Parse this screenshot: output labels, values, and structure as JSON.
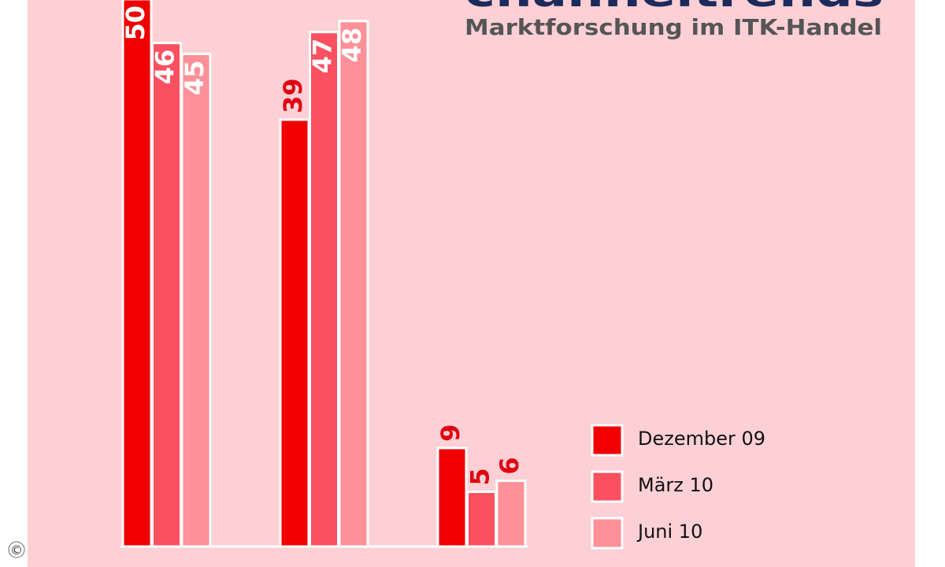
{
  "brand": "channeltrends",
  "tagline": "Marktforschung im ITK-Handel",
  "copyright": "©",
  "chart_data": {
    "type": "bar",
    "categories": [
      null,
      null,
      null
    ],
    "series": [
      {
        "name": "Dezember 09",
        "color": "#f00000",
        "values": [
          50,
          39,
          9
        ]
      },
      {
        "name": "März 10",
        "color": "#fb5060",
        "values": [
          46,
          47,
          5
        ]
      },
      {
        "name": "Juni 10",
        "color": "#fd9098",
        "values": [
          45,
          48,
          6
        ]
      }
    ],
    "legend": "right"
  }
}
